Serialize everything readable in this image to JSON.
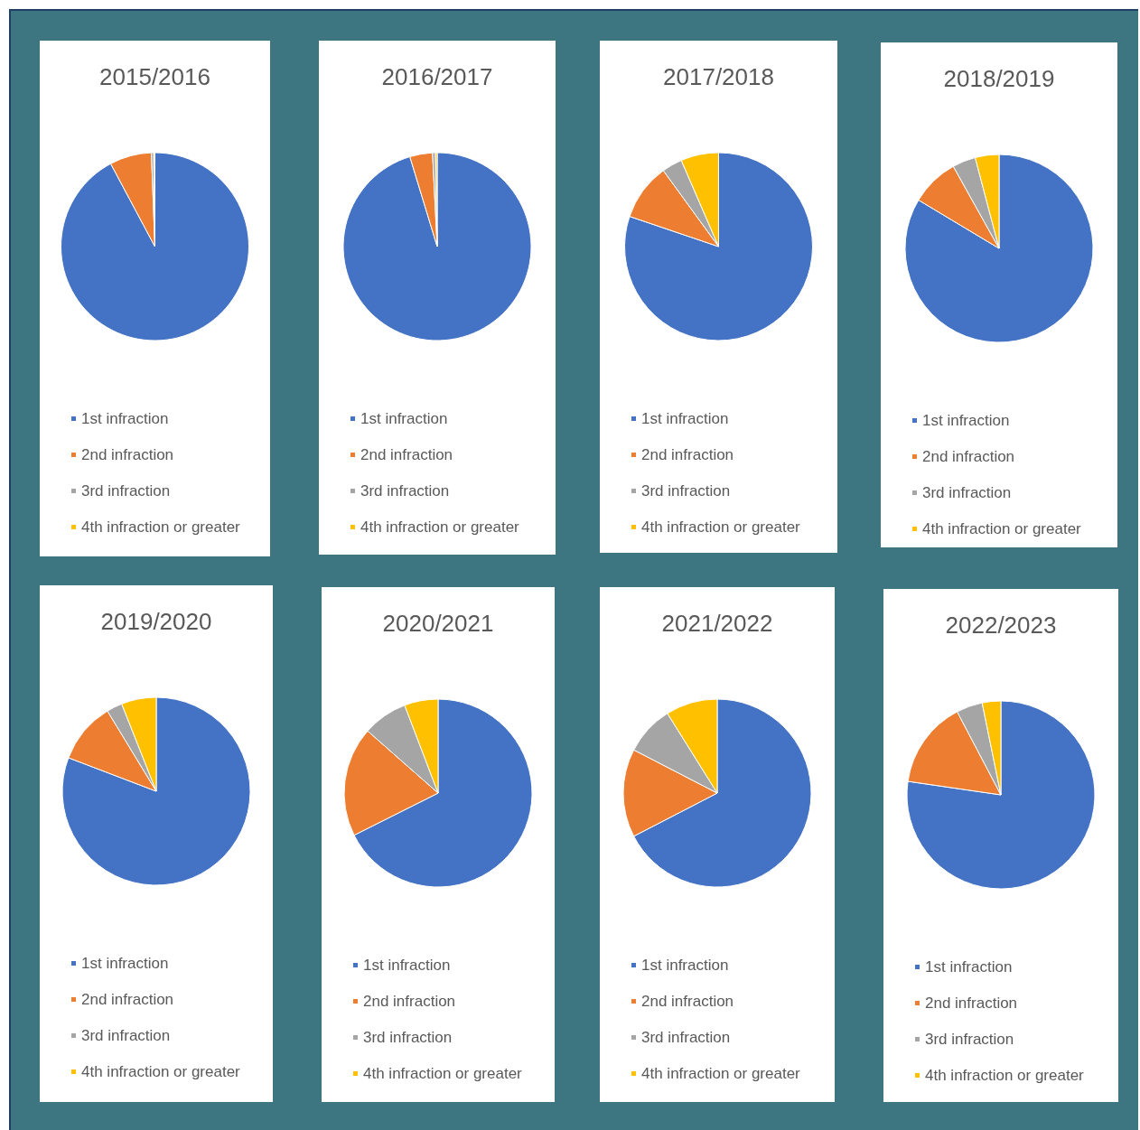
{
  "chart_data": [
    {
      "type": "pie",
      "title": "2015/2016",
      "categories": [
        "1st infraction",
        "2nd infraction",
        "3rd infraction",
        "4th infraction or greater"
      ],
      "values": [
        92.2,
        7.2,
        0.4,
        0.2
      ],
      "colors": [
        "#4472c4",
        "#ed7d31",
        "#a5a5a5",
        "#ffc000"
      ],
      "legend": "bottom"
    },
    {
      "type": "pie",
      "title": "2016/2017",
      "categories": [
        "1st infraction",
        "2nd infraction",
        "3rd infraction",
        "4th infraction or greater"
      ],
      "values": [
        95.3,
        3.9,
        0.5,
        0.3
      ],
      "colors": [
        "#4472c4",
        "#ed7d31",
        "#a5a5a5",
        "#ffc000"
      ],
      "legend": "bottom"
    },
    {
      "type": "pie",
      "title": "2017/2018",
      "categories": [
        "1st infraction",
        "2nd infraction",
        "3rd infraction",
        "4th infraction or greater"
      ],
      "values": [
        80.2,
        9.8,
        3.5,
        6.5
      ],
      "colors": [
        "#4472c4",
        "#ed7d31",
        "#a5a5a5",
        "#ffc000"
      ],
      "legend": "bottom"
    },
    {
      "type": "pie",
      "title": "2018/2019",
      "categories": [
        "1st infraction",
        "2nd infraction",
        "3rd infraction",
        "4th infraction or greater"
      ],
      "values": [
        83.6,
        8.3,
        4.0,
        4.1
      ],
      "colors": [
        "#4472c4",
        "#ed7d31",
        "#a5a5a5",
        "#ffc000"
      ],
      "legend": "bottom"
    },
    {
      "type": "pie",
      "title": "2019/2020",
      "categories": [
        "1st infraction",
        "2nd infraction",
        "3rd infraction",
        "4th infraction or greater"
      ],
      "values": [
        80.8,
        10.5,
        2.7,
        6.0
      ],
      "colors": [
        "#4472c4",
        "#ed7d31",
        "#a5a5a5",
        "#ffc000"
      ],
      "legend": "bottom"
    },
    {
      "type": "pie",
      "title": "2020/2021",
      "categories": [
        "1st infraction",
        "2nd infraction",
        "3rd infraction",
        "4th infraction or greater"
      ],
      "values": [
        67.6,
        18.9,
        7.7,
        5.8
      ],
      "colors": [
        "#4472c4",
        "#ed7d31",
        "#a5a5a5",
        "#ffc000"
      ],
      "legend": "bottom"
    },
    {
      "type": "pie",
      "title": "2021/2022",
      "categories": [
        "1st infraction",
        "2nd infraction",
        "3rd infraction",
        "4th infraction or greater"
      ],
      "values": [
        67.4,
        15.2,
        8.5,
        8.9
      ],
      "colors": [
        "#4472c4",
        "#ed7d31",
        "#a5a5a5",
        "#ffc000"
      ],
      "legend": "bottom"
    },
    {
      "type": "pie",
      "title": "2022/2023",
      "categories": [
        "1st infraction",
        "2nd infraction",
        "3rd infraction",
        "4th infraction or greater"
      ],
      "values": [
        77.3,
        15.0,
        4.5,
        3.2
      ],
      "colors": [
        "#4472c4",
        "#ed7d31",
        "#a5a5a5",
        "#ffc000"
      ],
      "legend": "bottom"
    }
  ]
}
